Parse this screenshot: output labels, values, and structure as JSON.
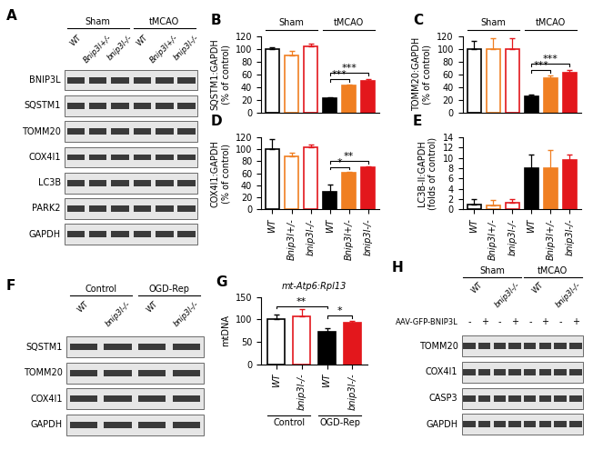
{
  "chart_data": [
    {
      "type": "bar",
      "panel": "B",
      "ylabel": "SQSTM1:GAPDH\n(% of control)",
      "categories": [
        null,
        null,
        null,
        null,
        null,
        null
      ],
      "values": [
        100,
        90,
        104,
        22,
        42,
        49
      ],
      "errors": [
        3,
        6,
        4,
        2,
        2,
        4
      ],
      "colors": [
        "#ffffff",
        "#ffffff",
        "#ffffff",
        "#000000",
        "#f07f22",
        "#e3171c"
      ],
      "ylim": [
        0,
        120
      ],
      "yticks": [
        0,
        20,
        40,
        60,
        80,
        100,
        120
      ],
      "groups": [
        {
          "label": "Sham",
          "from": 0,
          "to": 2
        },
        {
          "label": "tMCAO",
          "from": 3,
          "to": 5
        }
      ],
      "annotations": [
        {
          "text": "***",
          "from": 3,
          "to": 4,
          "y": 52
        },
        {
          "text": "***",
          "from": 3,
          "to": 5,
          "y": 62
        }
      ]
    },
    {
      "type": "bar",
      "panel": "C",
      "ylabel": "TOMM20:GAPDH\n(% of control)",
      "categories": [
        null,
        null,
        null,
        null,
        null,
        null
      ],
      "values": [
        100,
        100,
        99,
        25,
        54,
        63
      ],
      "errors": [
        12,
        17,
        18,
        3,
        4,
        4
      ],
      "colors": [
        "#ffffff",
        "#ffffff",
        "#ffffff",
        "#000000",
        "#f07f22",
        "#e3171c"
      ],
      "ylim": [
        0,
        120
      ],
      "yticks": [
        0,
        20,
        40,
        60,
        80,
        100,
        120
      ],
      "groups": [
        {
          "label": "Sham",
          "from": 0,
          "to": 2
        },
        {
          "label": "tMCAO",
          "from": 3,
          "to": 5
        }
      ],
      "annotations": [
        {
          "text": "***",
          "from": 3,
          "to": 4,
          "y": 66
        },
        {
          "text": "***",
          "from": 3,
          "to": 5,
          "y": 76
        }
      ]
    },
    {
      "type": "bar",
      "panel": "D",
      "ylabel": "COX4I1:GAPDH\n(% of control)",
      "categories": [
        "WT",
        "Bnip3l+/-",
        "bnip3l-/-",
        "WT",
        "Bnip3l+/-",
        "bnip3l-/-"
      ],
      "values": [
        100,
        88,
        103,
        29,
        61,
        70
      ],
      "errors": [
        17,
        6,
        5,
        12,
        2,
        1
      ],
      "colors": [
        "#ffffff",
        "#ffffff",
        "#ffffff",
        "#000000",
        "#f07f22",
        "#e3171c"
      ],
      "ylim": [
        0,
        120
      ],
      "yticks": [
        0,
        20,
        40,
        60,
        80,
        100,
        120
      ],
      "annotations": [
        {
          "text": "*",
          "from": 3,
          "to": 4,
          "y": 70
        },
        {
          "text": "**",
          "from": 3,
          "to": 5,
          "y": 80
        }
      ]
    },
    {
      "type": "bar",
      "panel": "E",
      "ylabel": "LC3B-II:GAPDH\n(folds of control)",
      "categories": [
        "WT",
        "Bnip3l+/-",
        "bnip3l-/-",
        "WT",
        "Bnip3l+/-",
        "bnip3l-/-"
      ],
      "values": [
        1,
        0.8,
        1.2,
        7.9,
        8,
        9.5
      ],
      "errors": [
        1,
        1,
        0.8,
        2.8,
        3.5,
        1.2
      ],
      "colors": [
        "#ffffff",
        "#ffffff",
        "#ffffff",
        "#000000",
        "#f07f22",
        "#e3171c"
      ],
      "ylim": [
        0,
        14
      ],
      "yticks": [
        0,
        2,
        4,
        6,
        8,
        10,
        12,
        14
      ]
    },
    {
      "type": "bar",
      "panel": "G",
      "title": "mt-Atp6:Rpl13",
      "ylabel": "mtDNA",
      "categories": [
        "WT",
        "bnip3l-/-",
        "WT",
        "bnip3l-/-"
      ],
      "values": [
        100,
        106,
        72,
        92
      ],
      "errors": [
        12,
        18,
        8,
        5
      ],
      "colors": [
        "#ffffff",
        "#ffffff",
        "#000000",
        "#e3171c"
      ],
      "ylim": [
        0,
        150
      ],
      "yticks": [
        0,
        50,
        100,
        150
      ],
      "groups": [
        {
          "label": "Control",
          "from": 0,
          "to": 1
        },
        {
          "label": "OGD-Rep",
          "from": 2,
          "to": 3
        }
      ],
      "annotations": [
        {
          "text": "**",
          "from": 0,
          "to": 2,
          "y": 130
        },
        {
          "text": "*",
          "from": 2,
          "to": 3,
          "y": 108
        }
      ]
    }
  ],
  "blots": [
    {
      "panel": "A",
      "groups": [
        {
          "label": "Sham",
          "lanes": [
            "WT",
            "Bnip3l+/-",
            "bnip3l-/-"
          ]
        },
        {
          "label": "tMCAO",
          "lanes": [
            "WT",
            "Bnip3l+/-",
            "bnip3l-/-"
          ]
        }
      ],
      "rows": [
        "BNIP3L",
        "SQSTM1",
        "TOMM20",
        "COX4I1",
        "LC3B",
        "PARK2",
        "GAPDH"
      ]
    },
    {
      "panel": "F",
      "groups": [
        {
          "label": "Control",
          "lanes": [
            "WT",
            "bnip3l-/-"
          ]
        },
        {
          "label": "OGD-Rep",
          "lanes": [
            "WT",
            "bnip3l-/-"
          ]
        }
      ],
      "rows": [
        "SQSTM1",
        "TOMM20",
        "COX4I1",
        "GAPDH"
      ]
    },
    {
      "panel": "H",
      "groups": [
        {
          "label": "Sham",
          "lanes": [
            "WT",
            "bnip3l-/-"
          ]
        },
        {
          "label": "tMCAO",
          "lanes": [
            "WT",
            "bnip3l-/-"
          ]
        }
      ],
      "treatment": {
        "label": "AAV-GFP-BNIP3L",
        "signs": [
          "-",
          "+",
          "-",
          "+",
          "-",
          "+",
          "-",
          "+"
        ]
      },
      "rows": [
        "TOMM20",
        "COX4I1",
        "CASP3",
        "GAPDH"
      ]
    }
  ]
}
